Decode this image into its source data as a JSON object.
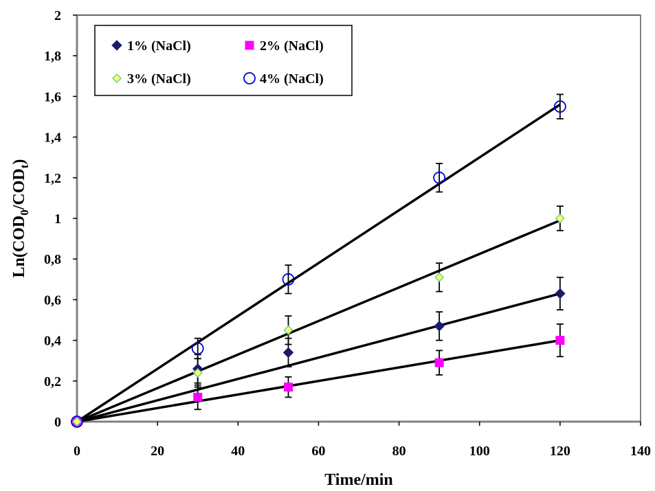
{
  "chart_data": {
    "type": "scatter",
    "xlabel": "Time/min",
    "ylabel": {
      "prefix": "Ln(COD",
      "sub1": "0",
      "middle": "/COD",
      "sub2": "t",
      "suffix": ")"
    },
    "xlim": [
      0,
      140
    ],
    "ylim": [
      0,
      2
    ],
    "x_ticks": [
      "0",
      "20",
      "40",
      "60",
      "80",
      "100",
      "120",
      "140"
    ],
    "y_ticks": [
      "0",
      "0,2",
      "0,4",
      "0,6",
      "0,8",
      "1",
      "1,2",
      "1,4",
      "1,6",
      "1,8",
      "2"
    ],
    "grid": false,
    "legend_position": "top-left",
    "x": [
      0,
      30,
      52.5,
      90,
      120
    ],
    "series": [
      {
        "name": "1% (NaCl)",
        "marker": "diamond",
        "color": "#1a1a6e",
        "values": [
          0,
          0.26,
          0.34,
          0.47,
          0.63
        ],
        "error": [
          0,
          0.07,
          0.07,
          0.07,
          0.08
        ],
        "fit_end": 0.63
      },
      {
        "name": "2% (NaCl)",
        "marker": "square",
        "color": "#ff00ff",
        "values": [
          0,
          0.12,
          0.17,
          0.29,
          0.4
        ],
        "error": [
          0,
          0.06,
          0.05,
          0.06,
          0.08
        ],
        "fit_end": 0.4
      },
      {
        "name": "3% (NaCl)",
        "marker": "diamond-small",
        "color": "#ffff66",
        "values": [
          0,
          0.24,
          0.45,
          0.71,
          1.0
        ],
        "error": [
          0,
          0.07,
          0.07,
          0.07,
          0.06
        ],
        "fit_end": 0.99
      },
      {
        "name": "4% (NaCl)",
        "marker": "circle-open",
        "color": "#0000cc",
        "values": [
          0,
          0.36,
          0.7,
          1.2,
          1.55
        ],
        "error": [
          0,
          0.05,
          0.07,
          0.07,
          0.06
        ],
        "fit_end": 1.56
      }
    ]
  }
}
